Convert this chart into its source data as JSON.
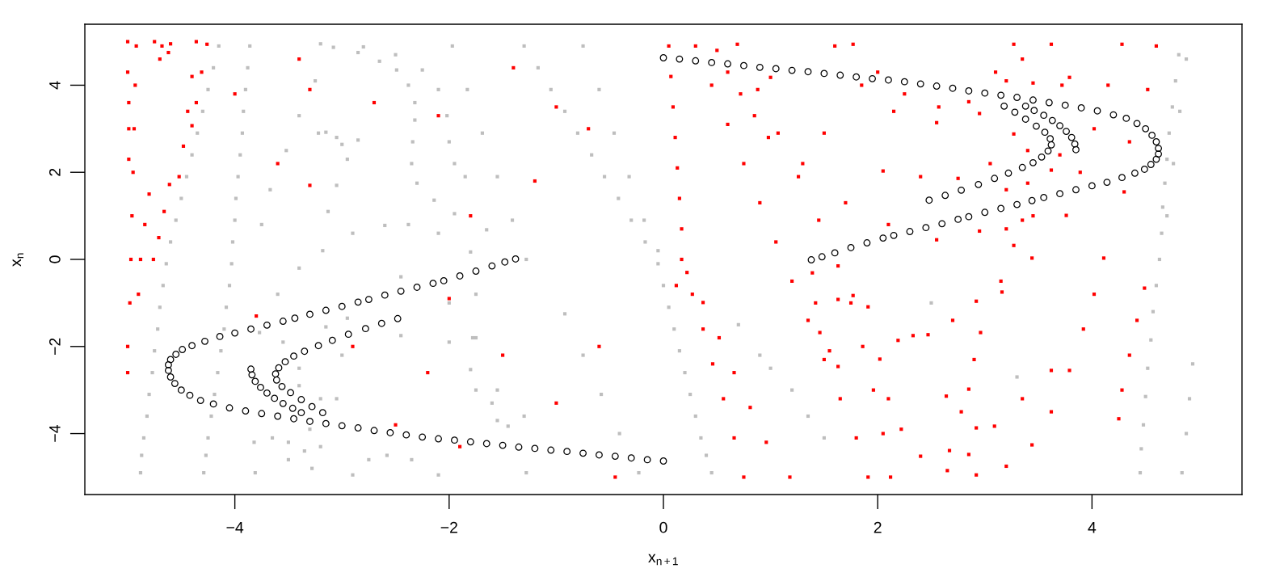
{
  "chart_data": {
    "type": "scatter",
    "xlabel": "x$_{n+1}$",
    "ylabel": "x$_{n}$",
    "xlim": [
      -5.4,
      5.4
    ],
    "ylim": [
      -5.4,
      5.4
    ],
    "xticks": [
      -4,
      -2,
      0,
      2,
      4
    ],
    "yticks": [
      -4,
      -2,
      0,
      2,
      4
    ],
    "series": [
      {
        "color": "#bebebe",
        "marker": "square",
        "x": [
          -4.15,
          -4.2,
          -4.25,
          -4.3,
          -4.35,
          -4.4,
          -4.45,
          -4.5,
          -4.55,
          -4.6,
          -4.64,
          -4.67,
          -4.7,
          -4.72,
          -4.75,
          -4.77,
          -4.8,
          -4.82,
          -4.85,
          -4.87,
          -4.88,
          -3.86,
          -3.88,
          -3.9,
          -3.92,
          -3.93,
          -3.95,
          -3.97,
          -3.99,
          -4.0,
          -4.02,
          -4.03,
          -4.05,
          -4.08,
          -4.1,
          -4.13,
          -4.16,
          -4.19,
          -4.22,
          -4.25,
          -4.27,
          -4.29,
          -3.25,
          -3.4,
          -3.52,
          -3.67,
          -3.75,
          -1.97,
          -1.83,
          -1.69,
          -1.55,
          -1.41,
          -1.28,
          -1.3,
          -1.17,
          -1.05,
          -0.92,
          -0.8,
          -0.67,
          -0.55,
          -0.42,
          -0.3,
          -0.17,
          -0.05,
          0.0,
          0.05,
          0.1,
          0.15,
          0.2,
          0.25,
          0.3,
          0.35,
          0.4,
          0.45,
          -0.75,
          -0.6,
          -0.46,
          -0.32,
          -0.18,
          -0.05,
          -0.92,
          -0.75,
          -0.58,
          -0.41,
          -0.23,
          4.81,
          4.78,
          4.75,
          4.72,
          4.7,
          4.68,
          4.66,
          4.65,
          4.63,
          4.6,
          4.57,
          4.55,
          4.52,
          4.5,
          4.48,
          4.46,
          4.45,
          4.94,
          4.91,
          4.88,
          4.84,
          4.88,
          4.82,
          4.76,
          4.7
        ],
        "values": [
          4.9,
          4.4,
          3.9,
          3.4,
          2.9,
          2.4,
          1.9,
          1.4,
          0.9,
          0.4,
          -0.1,
          -0.6,
          -1.1,
          -1.6,
          -2.1,
          -2.6,
          -3.1,
          -3.6,
          -4.1,
          -4.5,
          -4.9,
          4.9,
          4.4,
          3.9,
          3.4,
          2.9,
          2.4,
          1.9,
          1.4,
          0.9,
          0.4,
          -0.1,
          -0.6,
          -1.1,
          -1.6,
          -2.1,
          -2.6,
          -3.1,
          -3.6,
          -4.1,
          -4.5,
          -4.9,
          4.1,
          3.3,
          2.5,
          1.6,
          0.8,
          4.9,
          3.9,
          2.9,
          1.9,
          0.9,
          0.0,
          4.9,
          4.4,
          3.9,
          3.4,
          2.9,
          2.4,
          1.9,
          1.4,
          0.9,
          0.4,
          -0.1,
          -0.6,
          -1.1,
          -1.6,
          -2.1,
          -2.6,
          -3.1,
          -3.6,
          -4.1,
          -4.5,
          -4.9,
          4.9,
          3.9,
          2.9,
          1.9,
          0.9,
          0.2,
          -1.25,
          -2.2,
          -3.1,
          -4.0,
          -4.9,
          4.7,
          4.1,
          3.5,
          2.9,
          2.3,
          1.75,
          1.2,
          0.6,
          0.0,
          -0.6,
          -1.2,
          -1.85,
          -2.5,
          -3.15,
          -3.8,
          -4.35,
          -4.9,
          -2.4,
          -3.2,
          -4.0,
          -4.9,
          4.6,
          3.4,
          2.2,
          1.0
        ]
      },
      {
        "color": "#bebebe",
        "marker": "square",
        "x": [
          -3.08,
          -2.85,
          -2.65,
          -2.49,
          -2.38,
          -2.32,
          -2.32,
          -2.34,
          -2.35,
          -2.3,
          -2.14,
          -1.95,
          -1.65,
          -3.2,
          -2.8,
          -2.5,
          -2.25,
          -2.1,
          -2.02,
          -2.0,
          -1.95,
          -1.85,
          -3.22,
          -3.15,
          -3.05,
          -3.0,
          -2.85,
          -2.95,
          -3.05,
          -3.13,
          -3.81,
          -3.82,
          -3.77,
          -3.6,
          -3.4,
          -3.18,
          -2.9,
          -2.6,
          -2.38,
          -2.1,
          -1.8,
          -1.75,
          -1.78,
          -1.8,
          -1.6,
          -1.45,
          -1.28,
          -3.4,
          -3.15,
          -2.95,
          -2.45,
          -2.0,
          -1.75,
          -1.55,
          -1.3,
          -3.05,
          -3.0,
          -2.45,
          -2.0,
          -1.75,
          -1.55,
          -2.9,
          -2.75,
          -2.58,
          -2.35,
          -2.1,
          -3.55,
          -3.4,
          -3.3,
          -3.35,
          -3.28,
          -3.5,
          -3.2,
          -3.5,
          -3.2,
          -3.65,
          1.0,
          1.2,
          1.35,
          0.9,
          1.5,
          0.7,
          2.5,
          3.3
        ],
        "values": [
          4.87,
          4.75,
          4.55,
          4.35,
          4.0,
          3.6,
          3.2,
          2.7,
          2.2,
          1.75,
          1.36,
          1.05,
          0.68,
          4.95,
          4.88,
          4.7,
          4.35,
          3.9,
          3.3,
          2.7,
          2.2,
          1.9,
          2.9,
          2.92,
          2.8,
          2.64,
          2.74,
          2.3,
          1.7,
          1.1,
          -4.9,
          -4.2,
          -1.68,
          -0.8,
          -0.2,
          0.2,
          0.6,
          0.78,
          0.8,
          0.6,
          0.17,
          -0.8,
          -1.8,
          -2.53,
          -3.3,
          -3.83,
          -4.9,
          -2.5,
          -1.55,
          -1.35,
          -0.4,
          -1.0,
          -1.8,
          -3.0,
          -3.6,
          -3.2,
          -2.2,
          -1.75,
          -1.9,
          -3.0,
          -3.7,
          -4.95,
          -4.6,
          -4.5,
          -4.6,
          -4.95,
          -1.9,
          -2.9,
          -3.9,
          -4.4,
          -4.8,
          -4.2,
          -3.2,
          -4.6,
          -4.3,
          -4.1,
          -2.5,
          -3.0,
          -3.6,
          -2.2,
          -4.1,
          -1.5,
          -1.0,
          -2.7
        ]
      },
      {
        "color": "#ff0000",
        "marker": "square",
        "x": [
          -5.0,
          -5.0,
          -4.99,
          -4.99,
          -4.99,
          -4.92,
          -4.93,
          -4.94,
          -4.95,
          -4.96,
          -4.97,
          -4.98,
          -5.0,
          -5.0,
          -4.75,
          -4.68,
          -4.62,
          -4.7,
          -4.6,
          -4.36,
          -4.4,
          -4.44,
          -4.48,
          -4.52,
          -4.26,
          -4.31,
          -4.36,
          -4.4,
          -4.61,
          -4.66,
          -4.71,
          -4.76,
          -4.8,
          -4.84,
          -4.88,
          -4.9,
          -4.0,
          -3.4,
          -2.7,
          -2.1,
          -1.4,
          -1.0,
          -3.6,
          -3.3,
          -1.8,
          -0.7,
          -2.9,
          -2.2,
          -1.5,
          -1.0,
          -0.6,
          -2.5,
          -1.9,
          -3.8,
          -2.0,
          -0.45,
          -1.2,
          -3.3
        ],
        "values": [
          5.0,
          4.3,
          3.6,
          3.0,
          2.3,
          4.9,
          4.0,
          3.0,
          2.0,
          1.0,
          0.0,
          -1.0,
          -2.0,
          -2.6,
          5.0,
          4.9,
          4.75,
          4.6,
          4.95,
          5.0,
          4.2,
          3.4,
          2.6,
          1.9,
          4.94,
          4.3,
          3.6,
          3.07,
          1.72,
          1.1,
          0.5,
          0.0,
          1.5,
          0.8,
          0.0,
          -0.8,
          3.8,
          4.6,
          3.6,
          3.3,
          4.4,
          3.5,
          2.2,
          1.7,
          1.0,
          3.0,
          -2.0,
          -2.6,
          -2.2,
          -3.3,
          -2.0,
          -3.8,
          -4.3,
          -1.3,
          -0.9,
          -5.0,
          1.8,
          3.9
        ]
      },
      {
        "color": "#ff0000",
        "marker": "square",
        "x": [
          0.05,
          0.07,
          0.09,
          0.11,
          0.13,
          0.15,
          0.17,
          0.17,
          0.12,
          0.3,
          0.45,
          0.6,
          0.75,
          0.9,
          1.05,
          1.2,
          1.35,
          1.5,
          1.65,
          1.8,
          1.91,
          0.69,
          0.88,
          1.07,
          1.26,
          1.45,
          1.63,
          1.75,
          1.86,
          1.96,
          2.05,
          2.12,
          0.22,
          0.27,
          0.37,
          0.46,
          0.56,
          0.66,
          0.75,
          0.37,
          0.52,
          0.66,
          0.81,
          0.96,
          1.18,
          0.5,
          0.6,
          0.72,
          0.85,
          0.98,
          4.28,
          4.15,
          4.02,
          3.89,
          3.76,
          4.49,
          4.42,
          4.35,
          4.28,
          4.25,
          4.6,
          4.52,
          4.35,
          4.3
        ],
        "values": [
          4.9,
          4.2,
          3.5,
          2.8,
          2.1,
          1.4,
          0.7,
          0.0,
          -0.6,
          4.9,
          4.0,
          3.1,
          2.2,
          1.3,
          0.4,
          -0.5,
          -1.4,
          -2.3,
          -3.2,
          -4.1,
          -5.0,
          4.94,
          3.9,
          2.9,
          1.9,
          0.9,
          -0.15,
          -1.0,
          -2.0,
          -3.0,
          -4.0,
          -5.0,
          -0.3,
          -0.8,
          -1.6,
          -2.4,
          -3.2,
          -4.1,
          -5.0,
          -0.99,
          -1.8,
          -2.6,
          -3.4,
          -4.2,
          -5.0,
          4.8,
          4.3,
          3.8,
          3.3,
          2.8,
          4.94,
          4.0,
          3.0,
          2.0,
          1.01,
          -0.66,
          -1.4,
          -2.2,
          -3.0,
          -3.66,
          4.9,
          3.9,
          2.7,
          1.55
        ]
      },
      {
        "color": "#ff0000",
        "marker": "square",
        "x": [
          1.77,
          2.0,
          2.25,
          2.57,
          2.85,
          3.1,
          3.27,
          1.6,
          1.85,
          2.15,
          2.55,
          2.95,
          3.2,
          3.35,
          1.0,
          1.5,
          2.05,
          2.4,
          2.75,
          3.05,
          3.27,
          3.45,
          3.62,
          1.3,
          1.7,
          2.1,
          2.55,
          2.95,
          3.2,
          3.4,
          3.27,
          3.35,
          3.4,
          3.62,
          3.7,
          3.72,
          3.79,
          3.45,
          3.2,
          2.02,
          2.1,
          2.22,
          2.4,
          2.65,
          2.92,
          3.2,
          3.44,
          3.62,
          3.79,
          3.92,
          4.02,
          4.11,
          2.19,
          2.33,
          2.47,
          2.7,
          2.92,
          3.15,
          3.44,
          2.64,
          2.78,
          2.92,
          2.67,
          2.85,
          3.09,
          3.35,
          3.62,
          2.85,
          2.9,
          2.96,
          3.16,
          1.39,
          1.42,
          1.46,
          1.55,
          1.63,
          1.63,
          1.77,
          1.91
        ],
        "values": [
          4.94,
          4.3,
          3.8,
          3.5,
          3.62,
          4.3,
          4.94,
          4.9,
          4.0,
          3.4,
          3.14,
          3.35,
          4.1,
          4.6,
          4.18,
          2.9,
          2.03,
          1.9,
          1.86,
          2.2,
          2.88,
          4.05,
          4.94,
          2.2,
          1.3,
          0.8,
          0.45,
          0.65,
          1.6,
          2.5,
          0.32,
          0.9,
          1.75,
          2.05,
          2.4,
          4.0,
          4.18,
          1.0,
          0.7,
          -2.29,
          -3.2,
          -3.9,
          -4.52,
          -4.85,
          -4.95,
          -4.75,
          -4.26,
          -3.5,
          -2.55,
          -1.6,
          -0.8,
          0.03,
          -1.86,
          -1.75,
          -1.73,
          -1.4,
          -0.96,
          -0.5,
          0.03,
          -3.14,
          -3.5,
          -3.87,
          -4.39,
          -4.48,
          -3.83,
          -3.2,
          -2.55,
          -2.98,
          -2.3,
          -1.68,
          -0.75,
          -0.31,
          -1.0,
          -1.68,
          -2.1,
          -2.46,
          -0.92,
          -0.83,
          -1.09
        ]
      },
      {
        "color": "#000000",
        "marker": "circle",
        "x": [
          0.0,
          0.15,
          0.3,
          0.45,
          0.6,
          0.75,
          0.9,
          1.05,
          1.2,
          1.35,
          1.5,
          1.65,
          1.8,
          1.95,
          2.1,
          2.25,
          2.4,
          2.55,
          2.7,
          2.85,
          3.0,
          3.15,
          3.3,
          3.45,
          3.6,
          3.75,
          3.9,
          4.05,
          4.2,
          4.32,
          4.42,
          4.5,
          4.56,
          4.6,
          4.62,
          4.62,
          4.6,
          4.55,
          4.49,
          4.4,
          4.28,
          4.14,
          4.0,
          3.85,
          3.7,
          3.55,
          3.44,
          3.3,
          3.15,
          3.0,
          2.85,
          2.75,
          2.6,
          2.45,
          2.3,
          2.15,
          2.05,
          1.9,
          1.75,
          1.6,
          1.48,
          1.38,
          2.48,
          2.63,
          2.78,
          2.94,
          3.09,
          3.22,
          3.35,
          3.45,
          3.53,
          3.59,
          3.62,
          3.61,
          3.56,
          3.48,
          3.38,
          3.28,
          3.18,
          3.85,
          3.84,
          3.81,
          3.76,
          3.7,
          3.63,
          3.55,
          3.46,
          3.38
        ],
        "values": [
          4.63,
          4.6,
          4.56,
          4.52,
          4.49,
          4.45,
          4.41,
          4.38,
          4.34,
          4.31,
          4.27,
          4.23,
          4.19,
          4.15,
          4.12,
          4.08,
          4.03,
          3.98,
          3.93,
          3.87,
          3.82,
          3.77,
          3.72,
          3.66,
          3.6,
          3.54,
          3.48,
          3.41,
          3.32,
          3.24,
          3.12,
          3.0,
          2.85,
          2.7,
          2.55,
          2.42,
          2.3,
          2.18,
          2.07,
          1.98,
          1.88,
          1.77,
          1.69,
          1.6,
          1.51,
          1.42,
          1.35,
          1.26,
          1.17,
          1.08,
          0.98,
          0.92,
          0.82,
          0.73,
          0.64,
          0.55,
          0.49,
          0.38,
          0.27,
          0.15,
          0.06,
          -0.01,
          1.36,
          1.47,
          1.59,
          1.72,
          1.86,
          1.98,
          2.11,
          2.22,
          2.35,
          2.49,
          2.63,
          2.77,
          2.92,
          3.06,
          3.22,
          3.38,
          3.52,
          2.52,
          2.65,
          2.8,
          2.94,
          3.07,
          3.19,
          3.31,
          3.42,
          3.52
        ]
      },
      {
        "color": "#000000",
        "marker": "circle",
        "x": [
          0.0,
          -0.15,
          -0.3,
          -0.45,
          -0.6,
          -0.75,
          -0.9,
          -1.05,
          -1.2,
          -1.35,
          -1.5,
          -1.65,
          -1.8,
          -1.95,
          -2.1,
          -2.25,
          -2.4,
          -2.55,
          -2.7,
          -2.85,
          -3.0,
          -3.15,
          -3.3,
          -3.45,
          -3.6,
          -3.75,
          -3.9,
          -4.05,
          -4.2,
          -4.32,
          -4.42,
          -4.5,
          -4.56,
          -4.6,
          -4.62,
          -4.62,
          -4.6,
          -4.55,
          -4.49,
          -4.4,
          -4.28,
          -4.14,
          -4.0,
          -3.85,
          -3.7,
          -3.55,
          -3.44,
          -3.3,
          -3.15,
          -3.0,
          -2.85,
          -2.75,
          -2.6,
          -2.45,
          -2.3,
          -2.15,
          -2.05,
          -1.9,
          -1.75,
          -1.6,
          -1.48,
          -1.38,
          -2.48,
          -2.63,
          -2.78,
          -2.94,
          -3.09,
          -3.22,
          -3.35,
          -3.45,
          -3.53,
          -3.59,
          -3.62,
          -3.61,
          -3.56,
          -3.48,
          -3.38,
          -3.28,
          -3.18,
          -3.85,
          -3.84,
          -3.81,
          -3.76,
          -3.7,
          -3.63,
          -3.55,
          -3.46,
          -3.38
        ],
        "values": [
          -4.63,
          -4.6,
          -4.56,
          -4.52,
          -4.49,
          -4.45,
          -4.41,
          -4.38,
          -4.34,
          -4.31,
          -4.27,
          -4.23,
          -4.19,
          -4.15,
          -4.12,
          -4.08,
          -4.03,
          -3.98,
          -3.93,
          -3.87,
          -3.82,
          -3.77,
          -3.72,
          -3.66,
          -3.6,
          -3.54,
          -3.48,
          -3.41,
          -3.32,
          -3.24,
          -3.12,
          -3.0,
          -2.85,
          -2.7,
          -2.55,
          -2.42,
          -2.3,
          -2.18,
          -2.07,
          -1.98,
          -1.88,
          -1.77,
          -1.69,
          -1.6,
          -1.51,
          -1.42,
          -1.35,
          -1.26,
          -1.17,
          -1.08,
          -0.98,
          -0.92,
          -0.82,
          -0.73,
          -0.64,
          -0.55,
          -0.49,
          -0.38,
          -0.27,
          -0.15,
          -0.06,
          0.01,
          -1.36,
          -1.47,
          -1.59,
          -1.72,
          -1.86,
          -1.98,
          -2.11,
          -2.22,
          -2.35,
          -2.49,
          -2.63,
          -2.77,
          -2.92,
          -3.06,
          -3.22,
          -3.38,
          -3.52,
          -2.52,
          -2.65,
          -2.8,
          -2.94,
          -3.07,
          -3.19,
          -3.31,
          -3.42,
          -3.52
        ]
      }
    ]
  }
}
